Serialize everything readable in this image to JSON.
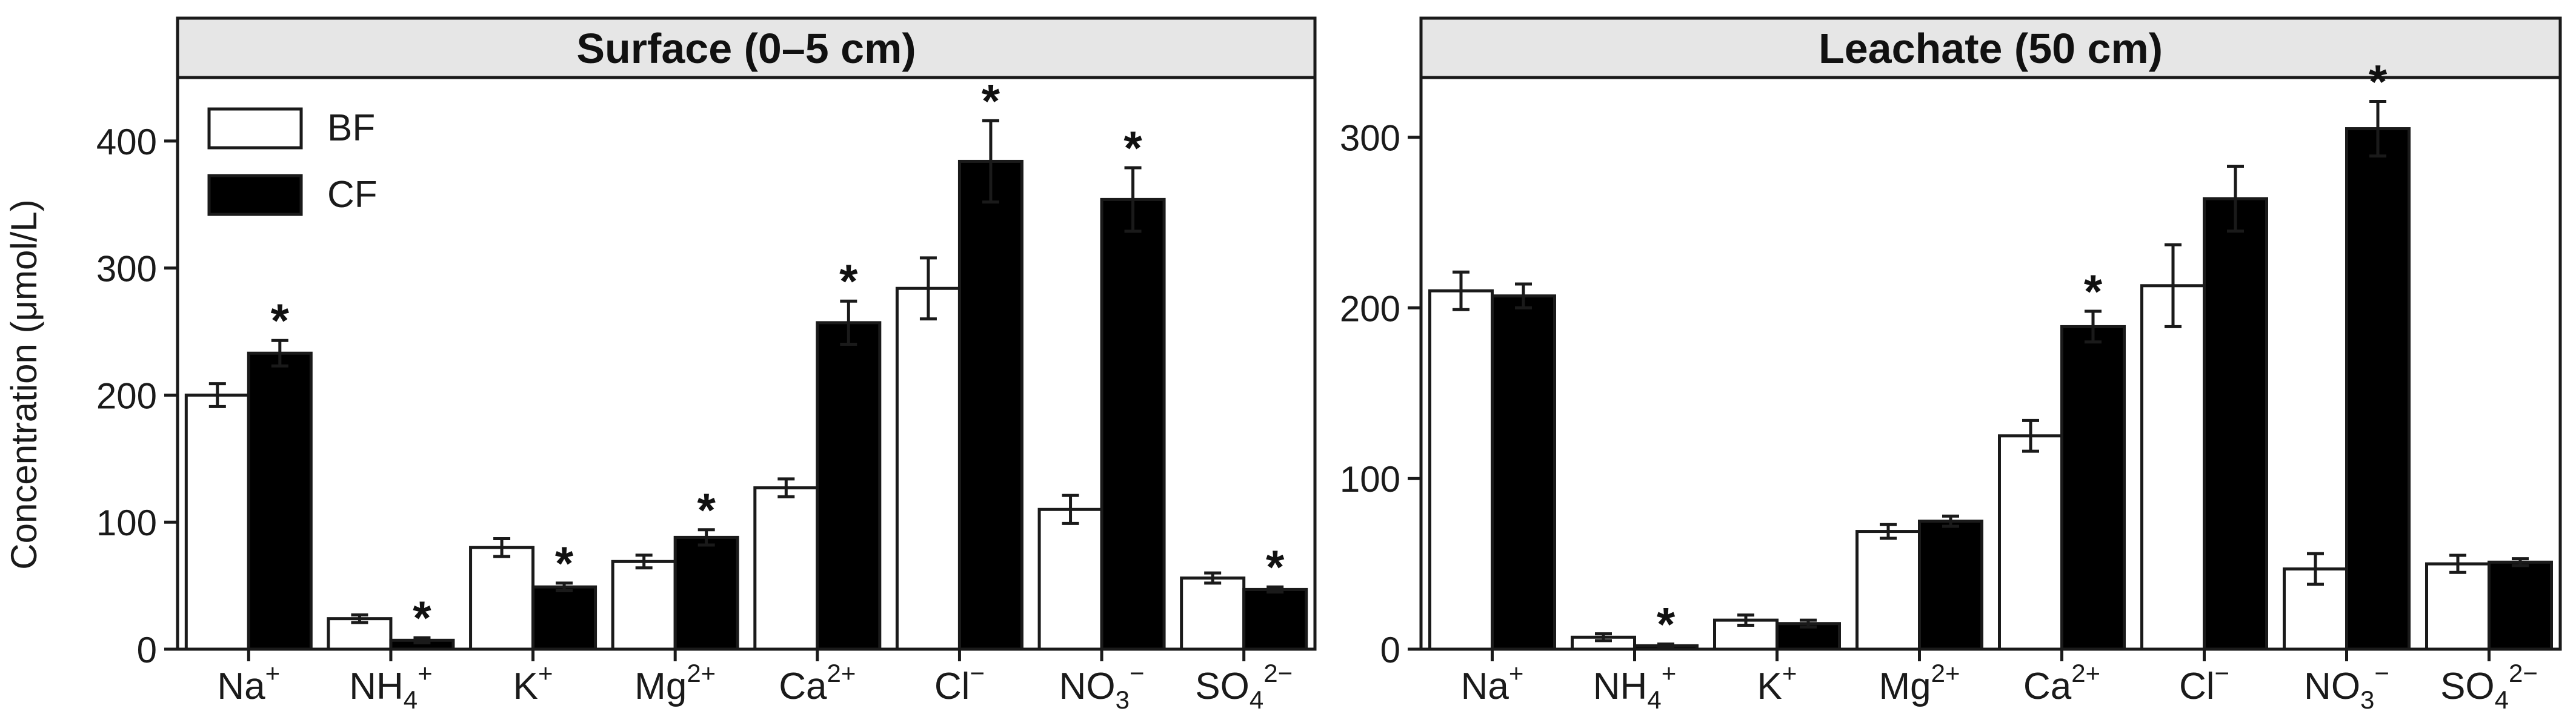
{
  "y_axis_label": "Concentration (μmol/L)",
  "legend": {
    "bf_label": "BF",
    "cf_label": "CF",
    "bf_color": "#ffffff",
    "cf_color": "#000000"
  },
  "significance_marker": "*",
  "chart_data": [
    {
      "type": "bar",
      "title": "Surface (0–5 cm)",
      "ylabel": "Concentration (μmol/L)",
      "ylim": [
        0,
        450
      ],
      "yticks": [
        0,
        100,
        200,
        300,
        400
      ],
      "legend_position": "top-left",
      "categories": [
        {
          "base": "Na",
          "sub": "",
          "sup": "+"
        },
        {
          "base": "NH",
          "sub": "4",
          "sup": "+"
        },
        {
          "base": "K",
          "sub": "",
          "sup": "+"
        },
        {
          "base": "Mg",
          "sub": "",
          "sup": "2+"
        },
        {
          "base": "Ca",
          "sub": "",
          "sup": "2+"
        },
        {
          "base": "Cl",
          "sub": "",
          "sup": "−"
        },
        {
          "base": "NO",
          "sub": "3",
          "sup": "−"
        },
        {
          "base": "SO",
          "sub": "4",
          "sup": "2−"
        }
      ],
      "series": [
        {
          "name": "BF",
          "color": "#ffffff",
          "values": [
            200,
            24,
            80,
            69,
            127,
            284,
            110,
            56
          ],
          "errors": [
            9,
            3,
            7,
            5,
            7,
            24,
            11,
            4
          ],
          "significant": [
            false,
            false,
            false,
            false,
            false,
            false,
            false,
            false
          ]
        },
        {
          "name": "CF",
          "color": "#000000",
          "values": [
            233,
            7,
            49,
            88,
            257,
            384,
            354,
            47
          ],
          "errors": [
            10,
            2,
            3,
            6,
            17,
            32,
            25,
            2
          ],
          "significant": [
            true,
            true,
            true,
            true,
            true,
            true,
            true,
            true
          ]
        }
      ]
    },
    {
      "type": "bar",
      "title": "Leachate (50 cm)",
      "ylabel": "",
      "ylim": [
        0,
        335
      ],
      "yticks": [
        0,
        100,
        200,
        300
      ],
      "categories": [
        {
          "base": "Na",
          "sub": "",
          "sup": "+"
        },
        {
          "base": "NH",
          "sub": "4",
          "sup": "+"
        },
        {
          "base": "K",
          "sub": "",
          "sup": "+"
        },
        {
          "base": "Mg",
          "sub": "",
          "sup": "2+"
        },
        {
          "base": "Ca",
          "sub": "",
          "sup": "2+"
        },
        {
          "base": "Cl",
          "sub": "",
          "sup": "−"
        },
        {
          "base": "NO",
          "sub": "3",
          "sup": "−"
        },
        {
          "base": "SO",
          "sub": "4",
          "sup": "2−"
        }
      ],
      "series": [
        {
          "name": "BF",
          "color": "#ffffff",
          "values": [
            210,
            7,
            17,
            69,
            125,
            213,
            47,
            50
          ],
          "errors": [
            11,
            2,
            3,
            4,
            9,
            24,
            9,
            5
          ],
          "significant": [
            false,
            false,
            false,
            false,
            false,
            false,
            false,
            false
          ]
        },
        {
          "name": "CF",
          "color": "#000000",
          "values": [
            207,
            2,
            15,
            75,
            189,
            264,
            305,
            51
          ],
          "errors": [
            7,
            1,
            2,
            3,
            9,
            19,
            16,
            2
          ],
          "significant": [
            false,
            true,
            false,
            false,
            true,
            false,
            true,
            false
          ]
        }
      ]
    }
  ]
}
